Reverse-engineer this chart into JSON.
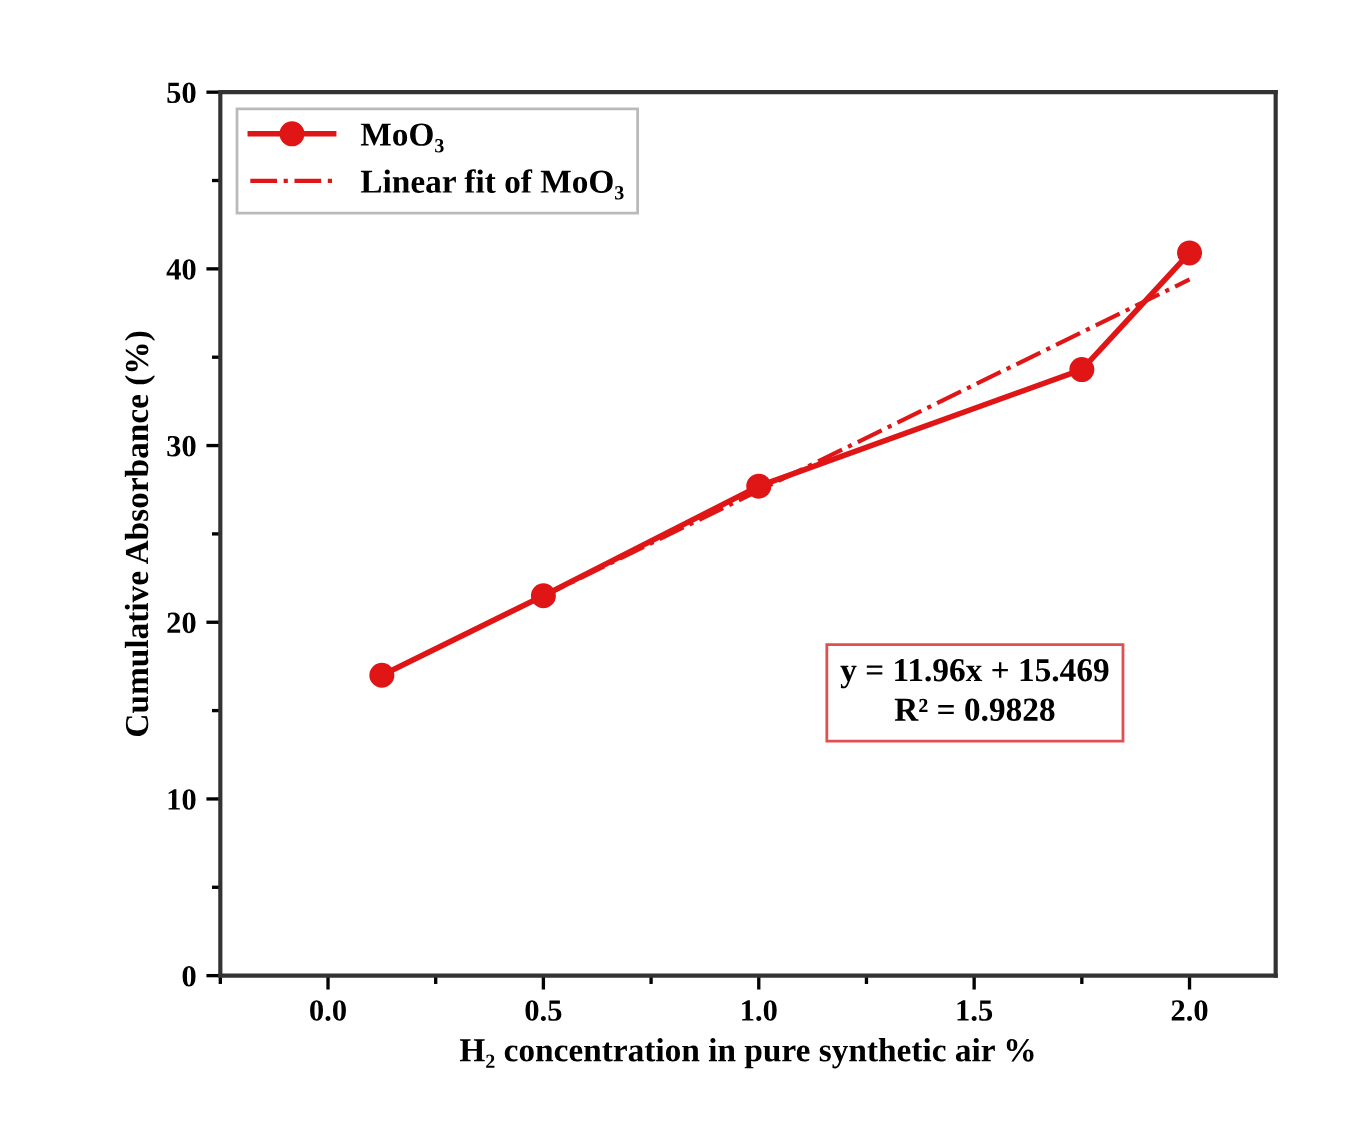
{
  "chart_data": {
    "type": "line",
    "xlabel": "H₂ concentration in pure synthetic air %",
    "ylabel": "Cumulative Absorbance (%)",
    "xlim": [
      -0.25,
      2.2
    ],
    "xticks": [
      {
        "value": 0,
        "label": "0.0"
      },
      0.5,
      {
        "value": 1,
        "label": "1.0"
      },
      1.5,
      {
        "value": 2,
        "label": "2.0"
      }
    ],
    "ylim": [
      0,
      50
    ],
    "yticks": [
      0,
      10,
      20,
      30,
      40,
      50
    ],
    "grid": false,
    "legend": "top left",
    "series": [
      {
        "name": "MoO₃",
        "color": "#e01515",
        "x": [
          0.125,
          0.5,
          1.0,
          1.75,
          2.0
        ],
        "values": [
          17.0,
          21.5,
          27.7,
          34.3,
          40.9
        ],
        "marker": "circle",
        "line_style": "solid"
      },
      {
        "name": "Linear fit of MoO₃",
        "color": "#e01515",
        "x": [
          0.125,
          2.0
        ],
        "values": [
          17.0,
          39.4
        ],
        "marker": "none",
        "line_style": "dashdot"
      }
    ],
    "annotations": [
      "y = 11.96x + 15.469\nR² = 0.9828"
    ]
  }
}
